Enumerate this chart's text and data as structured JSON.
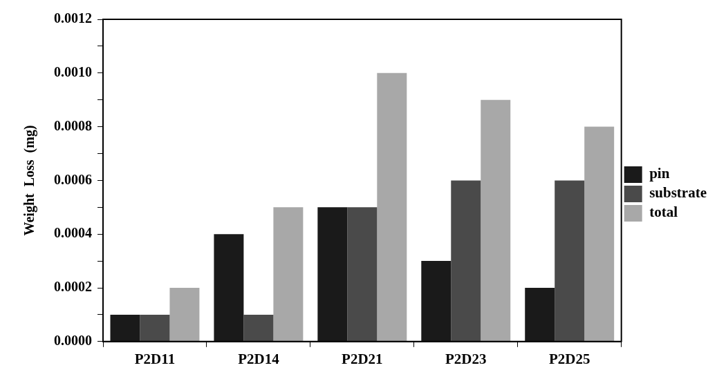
{
  "chart_data": {
    "type": "bar",
    "ylabel": "Weight  Loss  (mg)",
    "categories": [
      "P2D11",
      "P2D14",
      "P2D21",
      "P2D23",
      "P2D25"
    ],
    "series": [
      {
        "name": "pin",
        "color": "#1a1a1a",
        "values": [
          0.0001,
          0.0004,
          0.0005,
          0.0003,
          0.0002
        ]
      },
      {
        "name": "substrate",
        "color": "#4a4a4a",
        "values": [
          0.0001,
          0.0001,
          0.0005,
          0.0006,
          0.0006
        ]
      },
      {
        "name": "total",
        "color": "#a8a8a8",
        "values": [
          0.0002,
          0.0005,
          0.001,
          0.0009,
          0.0008
        ]
      }
    ],
    "ylim": [
      0,
      0.0012
    ],
    "yticks": [
      {
        "value": 0,
        "label": "0.0000"
      },
      {
        "value": 0.0001,
        "label": null
      },
      {
        "value": 0.0002,
        "label": "0.0002"
      },
      {
        "value": 0.0003,
        "label": null
      },
      {
        "value": 0.0004,
        "label": "0.0004"
      },
      {
        "value": 0.0005,
        "label": null
      },
      {
        "value": 0.0006,
        "label": "0.0006"
      },
      {
        "value": 0.0007,
        "label": null
      },
      {
        "value": 0.0008,
        "label": "0.0008"
      },
      {
        "value": 0.0009,
        "label": null
      },
      {
        "value": 0.001,
        "label": "0.0010"
      },
      {
        "value": 0.0011,
        "label": null
      },
      {
        "value": 0.0012,
        "label": "0.0012"
      }
    ],
    "grid": false,
    "legend": "right"
  }
}
